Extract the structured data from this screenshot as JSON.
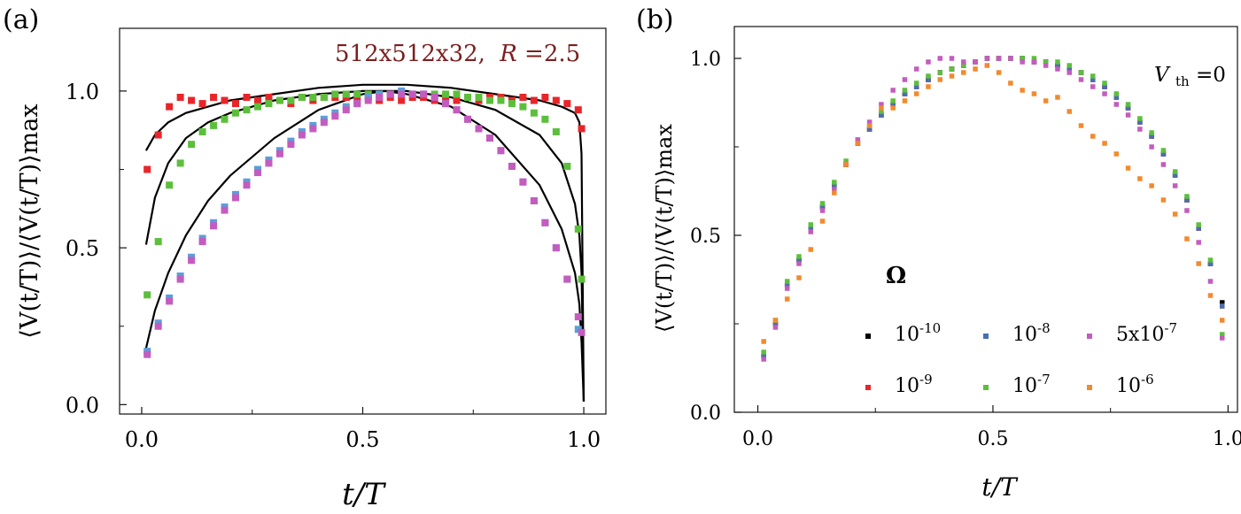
{
  "figure_labels": {
    "a": "(a)",
    "b": "(b)"
  },
  "chart_data": [
    {
      "type": "scatter",
      "panel": "(a)",
      "annotation": {
        "prefix": "512x512x32,",
        "var": "R",
        "eq": "=2.5",
        "color": "#7b1f1f"
      },
      "xlabel": "t/T",
      "ylabel": "⟨V(t/T)⟩/⟨V(t/T)⟩max",
      "xlim": [
        -0.05,
        1.05
      ],
      "ylim": [
        -0.03,
        1.2
      ],
      "xticks": [
        0.0,
        0.5,
        1.0
      ],
      "xtick_labels": [
        "0.0",
        "0.5",
        "1.0"
      ],
      "yticks": [
        0.0,
        0.5,
        1.0
      ],
      "ytick_labels": [
        "0.0",
        "0.5",
        "1.0"
      ],
      "series": [
        {
          "name": "red",
          "color": "#e8262a",
          "x": [
            0.0125,
            0.0375,
            0.0625,
            0.0875,
            0.1125,
            0.1375,
            0.1625,
            0.1875,
            0.2125,
            0.2375,
            0.2625,
            0.2875,
            0.3125,
            0.3375,
            0.3625,
            0.3875,
            0.4125,
            0.4375,
            0.4625,
            0.4875,
            0.5125,
            0.5375,
            0.5625,
            0.5875,
            0.6125,
            0.6375,
            0.6625,
            0.6875,
            0.7125,
            0.7375,
            0.7625,
            0.7875,
            0.8125,
            0.8375,
            0.8625,
            0.8875,
            0.9125,
            0.9375,
            0.9625,
            0.9875,
            0.995
          ],
          "y": [
            0.75,
            0.86,
            0.95,
            0.98,
            0.97,
            0.96,
            0.98,
            0.97,
            0.96,
            0.98,
            0.97,
            0.98,
            0.97,
            0.96,
            0.98,
            0.97,
            0.98,
            0.98,
            0.98,
            0.97,
            0.98,
            0.97,
            0.98,
            0.97,
            0.98,
            0.98,
            0.97,
            0.98,
            0.97,
            0.98,
            0.97,
            0.98,
            0.98,
            0.97,
            0.98,
            0.97,
            0.98,
            0.97,
            0.96,
            0.94,
            0.88
          ]
        },
        {
          "name": "green",
          "color": "#5cbf3c",
          "x": [
            0.0125,
            0.0375,
            0.0625,
            0.0875,
            0.1125,
            0.1375,
            0.1625,
            0.1875,
            0.2125,
            0.2375,
            0.2625,
            0.2875,
            0.3125,
            0.3375,
            0.3625,
            0.3875,
            0.4125,
            0.4375,
            0.4625,
            0.4875,
            0.5125,
            0.5375,
            0.5625,
            0.5875,
            0.6125,
            0.6375,
            0.6625,
            0.6875,
            0.7125,
            0.7375,
            0.7625,
            0.7875,
            0.8125,
            0.8375,
            0.8625,
            0.8875,
            0.9125,
            0.9375,
            0.9625,
            0.9875,
            0.995
          ],
          "y": [
            0.35,
            0.52,
            0.7,
            0.77,
            0.83,
            0.87,
            0.89,
            0.91,
            0.93,
            0.94,
            0.95,
            0.96,
            0.97,
            0.97,
            0.98,
            0.98,
            0.98,
            0.99,
            0.99,
            0.99,
            0.99,
            0.99,
            0.99,
            0.99,
            0.99,
            0.99,
            0.99,
            0.99,
            0.99,
            0.98,
            0.98,
            0.97,
            0.97,
            0.96,
            0.95,
            0.93,
            0.91,
            0.87,
            0.76,
            0.56,
            0.4
          ]
        },
        {
          "name": "blue",
          "color": "#5a9fd8",
          "x": [
            0.0125,
            0.0375,
            0.0625,
            0.0875,
            0.1125,
            0.1375,
            0.1625,
            0.1875,
            0.2125,
            0.2375,
            0.2625,
            0.2875,
            0.3125,
            0.3375,
            0.3625,
            0.3875,
            0.4125,
            0.4375,
            0.4625,
            0.4875,
            0.5125,
            0.5375,
            0.5625,
            0.5875,
            0.6125,
            0.6375,
            0.6625,
            0.6875,
            0.7125,
            0.7375,
            0.7625,
            0.7875,
            0.8125,
            0.8375,
            0.8625,
            0.8875,
            0.9125,
            0.9375,
            0.9625,
            0.9875
          ],
          "y": [
            0.17,
            0.26,
            0.34,
            0.41,
            0.47,
            0.53,
            0.58,
            0.63,
            0.67,
            0.71,
            0.75,
            0.78,
            0.81,
            0.84,
            0.87,
            0.89,
            0.91,
            0.93,
            0.95,
            0.96,
            0.98,
            0.99,
            0.99,
            1.0,
            0.99,
            0.99,
            0.98,
            0.96,
            0.94,
            0.91,
            0.88,
            0.85,
            0.81,
            0.76,
            0.71,
            0.65,
            0.58,
            0.5,
            0.4,
            0.24
          ]
        },
        {
          "name": "magenta",
          "color": "#c45cbf",
          "x": [
            0.0125,
            0.0375,
            0.0625,
            0.0875,
            0.1125,
            0.1375,
            0.1625,
            0.1875,
            0.2125,
            0.2375,
            0.2625,
            0.2875,
            0.3125,
            0.3375,
            0.3625,
            0.3875,
            0.4125,
            0.4375,
            0.4625,
            0.4875,
            0.5125,
            0.5375,
            0.5625,
            0.5875,
            0.6125,
            0.6375,
            0.6625,
            0.6875,
            0.7125,
            0.7375,
            0.7625,
            0.7875,
            0.8125,
            0.8375,
            0.8625,
            0.8875,
            0.9125,
            0.9375,
            0.9625,
            0.9875,
            0.995
          ],
          "y": [
            0.16,
            0.25,
            0.33,
            0.4,
            0.46,
            0.52,
            0.57,
            0.62,
            0.66,
            0.7,
            0.74,
            0.77,
            0.8,
            0.83,
            0.86,
            0.88,
            0.9,
            0.92,
            0.94,
            0.96,
            0.97,
            0.98,
            0.99,
            0.99,
            0.99,
            0.99,
            0.98,
            0.96,
            0.94,
            0.91,
            0.88,
            0.85,
            0.81,
            0.76,
            0.71,
            0.65,
            0.58,
            0.5,
            0.4,
            0.28,
            0.23
          ]
        }
      ],
      "fit_lines": [
        {
          "color": "#000000",
          "x": [
            0.01,
            0.03,
            0.06,
            0.1,
            0.15,
            0.2,
            0.3,
            0.4,
            0.5,
            0.55,
            0.6,
            0.7,
            0.8,
            0.9,
            0.95,
            0.98,
            0.99,
            0.995,
            1.0
          ],
          "y": [
            0.18,
            0.3,
            0.42,
            0.54,
            0.65,
            0.73,
            0.85,
            0.94,
            0.99,
            1.0,
            0.99,
            0.95,
            0.86,
            0.7,
            0.56,
            0.42,
            0.32,
            0.2,
            0.01
          ]
        },
        {
          "color": "#000000",
          "x": [
            0.01,
            0.03,
            0.06,
            0.1,
            0.15,
            0.2,
            0.3,
            0.4,
            0.5,
            0.55,
            0.6,
            0.7,
            0.8,
            0.9,
            0.95,
            0.98,
            0.99,
            0.995,
            1.0
          ],
          "y": [
            0.51,
            0.66,
            0.77,
            0.85,
            0.9,
            0.93,
            0.97,
            0.99,
            1.0,
            1.0,
            1.0,
            0.98,
            0.94,
            0.86,
            0.77,
            0.64,
            0.54,
            0.42,
            0.01
          ]
        },
        {
          "color": "#000000",
          "x": [
            0.01,
            0.03,
            0.06,
            0.1,
            0.15,
            0.2,
            0.3,
            0.4,
            0.5,
            0.55,
            0.6,
            0.7,
            0.8,
            0.9,
            0.95,
            0.98,
            0.99,
            0.995,
            1.0
          ],
          "y": [
            0.81,
            0.86,
            0.9,
            0.93,
            0.95,
            0.97,
            0.99,
            1.01,
            1.02,
            1.02,
            1.02,
            1.01,
            0.99,
            0.97,
            0.95,
            0.93,
            0.9,
            0.8,
            0.01
          ]
        }
      ]
    },
    {
      "type": "scatter",
      "panel": "(b)",
      "annotation": {
        "var": "V",
        "sub": "th",
        "eq": "=0"
      },
      "xlabel": "t/T",
      "ylabel": "⟨V(t/T)⟩/⟨V(t/T)⟩max",
      "xlim": [
        -0.05,
        1.02
      ],
      "ylim": [
        0.0,
        1.09
      ],
      "xticks": [
        0.0,
        0.5,
        1.0
      ],
      "xtick_labels": [
        "0.0",
        "0.5",
        "1.0"
      ],
      "yticks": [
        0.0,
        0.5,
        1.0
      ],
      "ytick_labels": [
        "0.0",
        "0.5",
        "1.0"
      ],
      "legend": {
        "title": "Ω",
        "entries": [
          {
            "label": "10",
            "exp": "-10",
            "color": "#000000"
          },
          {
            "label": "10",
            "exp": "-8",
            "color": "#4a6fb0"
          },
          {
            "label": "5x10",
            "exp": "-7",
            "color": "#c45cbf"
          },
          {
            "label": "10",
            "exp": "-9",
            "color": "#e8262a"
          },
          {
            "label": "10",
            "exp": "-7",
            "color": "#5cbf3c"
          },
          {
            "label": "10",
            "exp": "-6",
            "color": "#f28a2e"
          }
        ]
      },
      "x": [
        0.0125,
        0.0375,
        0.0625,
        0.0875,
        0.1125,
        0.1375,
        0.1625,
        0.1875,
        0.2125,
        0.2375,
        0.2625,
        0.2875,
        0.3125,
        0.3375,
        0.3625,
        0.3875,
        0.4125,
        0.4375,
        0.4625,
        0.4875,
        0.5125,
        0.5375,
        0.5625,
        0.5875,
        0.6125,
        0.6375,
        0.6625,
        0.6875,
        0.7125,
        0.7375,
        0.7625,
        0.7875,
        0.8125,
        0.8375,
        0.8625,
        0.8875,
        0.9125,
        0.9375,
        0.9625,
        0.9875
      ],
      "series": [
        {
          "name": "10^-10",
          "color": "#000000",
          "y": [
            0.16,
            0.25,
            0.36,
            0.43,
            0.52,
            0.58,
            0.64,
            0.7,
            0.76,
            0.8,
            0.84,
            0.87,
            0.9,
            0.92,
            0.94,
            0.96,
            0.97,
            0.98,
            0.99,
            1.0,
            1.0,
            1.0,
            1.0,
            0.99,
            0.99,
            0.98,
            0.97,
            0.96,
            0.94,
            0.92,
            0.89,
            0.86,
            0.82,
            0.78,
            0.73,
            0.67,
            0.6,
            0.52,
            0.42,
            0.31
          ]
        },
        {
          "name": "10^-9",
          "color": "#e8262a",
          "y": [
            0.16,
            0.25,
            0.36,
            0.43,
            0.52,
            0.58,
            0.64,
            0.7,
            0.76,
            0.8,
            0.84,
            0.87,
            0.9,
            0.92,
            0.94,
            0.96,
            0.97,
            0.98,
            0.99,
            1.0,
            1.0,
            1.0,
            1.0,
            0.99,
            0.99,
            0.98,
            0.97,
            0.96,
            0.94,
            0.92,
            0.89,
            0.86,
            0.82,
            0.78,
            0.73,
            0.67,
            0.6,
            0.52,
            0.42,
            0.3
          ]
        },
        {
          "name": "10^-8",
          "color": "#4a6fb0",
          "y": [
            0.16,
            0.25,
            0.36,
            0.43,
            0.52,
            0.58,
            0.64,
            0.7,
            0.76,
            0.8,
            0.84,
            0.87,
            0.9,
            0.92,
            0.94,
            0.96,
            0.97,
            0.98,
            0.99,
            1.0,
            1.0,
            1.0,
            1.0,
            0.99,
            0.99,
            0.98,
            0.97,
            0.96,
            0.94,
            0.92,
            0.89,
            0.86,
            0.82,
            0.78,
            0.73,
            0.67,
            0.6,
            0.52,
            0.42,
            0.3
          ]
        },
        {
          "name": "10^-7",
          "color": "#5cbf3c",
          "y": [
            0.17,
            0.26,
            0.37,
            0.44,
            0.53,
            0.59,
            0.65,
            0.71,
            0.77,
            0.81,
            0.85,
            0.88,
            0.91,
            0.93,
            0.95,
            0.96,
            0.97,
            0.98,
            0.99,
            1.0,
            1.0,
            1.0,
            1.0,
            1.0,
            0.99,
            0.99,
            0.98,
            0.96,
            0.95,
            0.93,
            0.9,
            0.87,
            0.83,
            0.79,
            0.74,
            0.68,
            0.61,
            0.53,
            0.43,
            0.22
          ]
        },
        {
          "name": "5x10^-7",
          "color": "#c45cbf",
          "y": [
            0.15,
            0.24,
            0.35,
            0.42,
            0.51,
            0.57,
            0.63,
            0.7,
            0.77,
            0.82,
            0.87,
            0.91,
            0.94,
            0.97,
            0.99,
            1.0,
            1.0,
            0.99,
            0.99,
            1.0,
            1.0,
            1.0,
            0.99,
            0.99,
            0.98,
            0.97,
            0.96,
            0.94,
            0.92,
            0.9,
            0.87,
            0.84,
            0.8,
            0.75,
            0.7,
            0.64,
            0.57,
            0.48,
            0.37,
            0.21
          ]
        },
        {
          "name": "10^-6",
          "color": "#f28a2e",
          "y": [
            0.2,
            0.26,
            0.32,
            0.38,
            0.46,
            0.54,
            0.62,
            0.7,
            0.76,
            0.81,
            0.86,
            0.86,
            0.88,
            0.9,
            0.92,
            0.94,
            0.95,
            0.96,
            0.97,
            0.98,
            0.96,
            0.93,
            0.91,
            0.9,
            0.88,
            0.89,
            0.85,
            0.81,
            0.78,
            0.76,
            0.73,
            0.69,
            0.66,
            0.64,
            0.6,
            0.56,
            0.49,
            0.42,
            0.33,
            0.26
          ]
        }
      ]
    }
  ]
}
